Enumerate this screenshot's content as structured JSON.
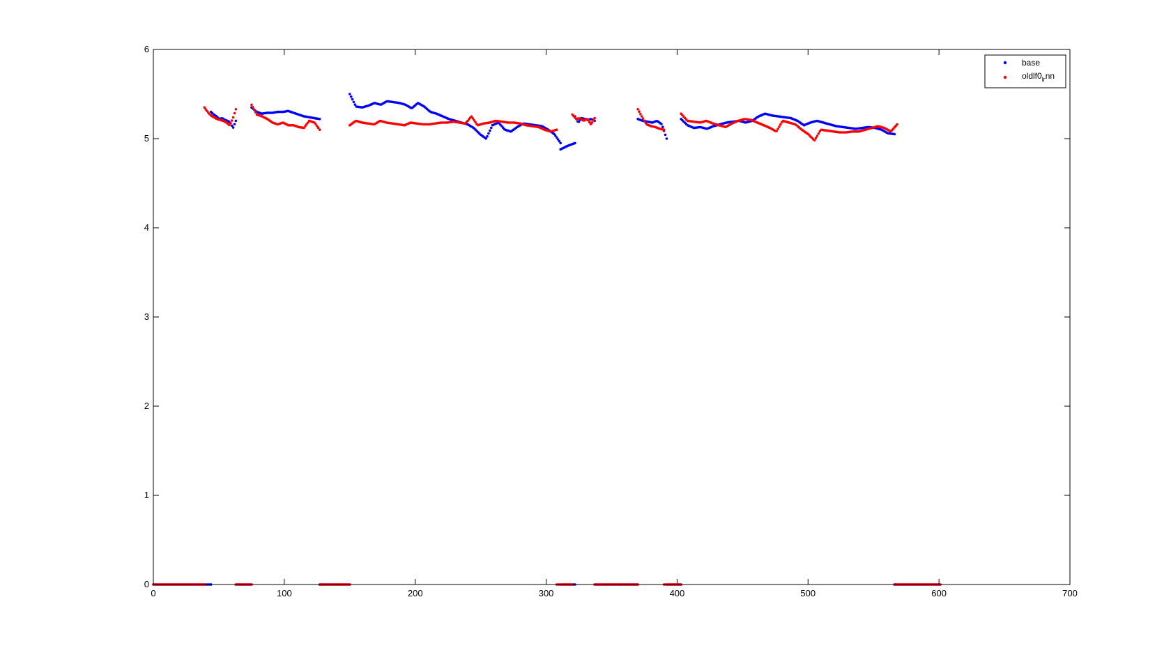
{
  "chart_data": {
    "type": "scatter",
    "title": "",
    "xlabel": "",
    "ylabel": "",
    "xlim": [
      0,
      700
    ],
    "ylim": [
      0,
      6
    ],
    "x_ticks": [
      0,
      100,
      200,
      300,
      400,
      500,
      600,
      700
    ],
    "y_ticks": [
      0,
      1,
      2,
      3,
      4,
      5,
      6
    ],
    "grid": false,
    "legend_position": "top-right",
    "series": [
      {
        "name": "base",
        "color": "#0000ff",
        "segments": [
          {
            "x_start": 44,
            "x_end": 63,
            "y": [
              5.3,
              5.27,
              5.25,
              5.22,
              5.23,
              5.21,
              5.2,
              5.18,
              5.12,
              5.2
            ]
          },
          {
            "x_start": 75,
            "x_end": 127,
            "y": [
              5.35,
              5.3,
              5.28,
              5.29,
              5.29,
              5.3,
              5.3,
              5.31,
              5.29,
              5.27,
              5.25,
              5.24,
              5.23,
              5.22
            ]
          },
          {
            "x_start": 150,
            "x_end": 311,
            "y": [
              5.5,
              5.36,
              5.35,
              5.37,
              5.4,
              5.38,
              5.42,
              5.41,
              5.4,
              5.38,
              5.34,
              5.4,
              5.36,
              5.3,
              5.28,
              5.25,
              5.22,
              5.2,
              5.18,
              5.16,
              5.12,
              5.05,
              5.0,
              5.15,
              5.18,
              5.1,
              5.08,
              5.13,
              5.17,
              5.16,
              5.15,
              5.14,
              5.1,
              5.05,
              4.95
            ]
          },
          {
            "x_start": 311,
            "x_end": 322,
            "y": [
              4.88,
              4.92,
              4.95
            ]
          },
          {
            "x_start": 322,
            "x_end": 337,
            "y": [
              5.25,
              5.18,
              5.23,
              5.22,
              5.21,
              5.22,
              5.2
            ]
          },
          {
            "x_start": 370,
            "x_end": 392,
            "y": [
              5.22,
              5.2,
              5.19,
              5.18,
              5.2,
              5.16,
              5.0
            ]
          },
          {
            "x_start": 403,
            "x_end": 566,
            "y": [
              5.22,
              5.15,
              5.12,
              5.13,
              5.11,
              5.14,
              5.16,
              5.18,
              5.19,
              5.2,
              5.18,
              5.2,
              5.25,
              5.28,
              5.26,
              5.25,
              5.24,
              5.23,
              5.2,
              5.15,
              5.18,
              5.2,
              5.18,
              5.16,
              5.14,
              5.13,
              5.12,
              5.11,
              5.12,
              5.13,
              5.12,
              5.1,
              5.06,
              5.05
            ]
          }
        ],
        "zero_ranges": [
          [
            0,
            44
          ],
          [
            63,
            75
          ],
          [
            127,
            150
          ],
          [
            311,
            322
          ],
          [
            337,
            370
          ],
          [
            392,
            403
          ],
          [
            566,
            601
          ]
        ]
      },
      {
        "name": "oldlf0_lr_nn",
        "color": "#ff0000",
        "segments": [
          {
            "x_start": 39,
            "x_end": 63,
            "y": [
              5.35,
              5.3,
              5.26,
              5.24,
              5.22,
              5.21,
              5.2,
              5.18,
              5.15,
              5.22,
              5.33
            ]
          },
          {
            "x_start": 75,
            "x_end": 127,
            "y": [
              5.38,
              5.27,
              5.25,
              5.22,
              5.18,
              5.16,
              5.18,
              5.15,
              5.15,
              5.13,
              5.12,
              5.2,
              5.18,
              5.1
            ]
          },
          {
            "x_start": 150,
            "x_end": 308,
            "y": [
              5.15,
              5.2,
              5.18,
              5.17,
              5.16,
              5.2,
              5.18,
              5.17,
              5.16,
              5.15,
              5.18,
              5.17,
              5.16,
              5.16,
              5.17,
              5.18,
              5.18,
              5.19,
              5.18,
              5.17,
              5.25,
              5.15,
              5.17,
              5.18,
              5.2,
              5.19,
              5.18,
              5.18,
              5.17,
              5.15,
              5.14,
              5.13,
              5.1,
              5.08,
              5.1
            ]
          },
          {
            "x_start": 320,
            "x_end": 337,
            "y": [
              5.27,
              5.22,
              5.23,
              5.2,
              5.22,
              5.16,
              5.23
            ]
          },
          {
            "x_start": 370,
            "x_end": 390,
            "y": [
              5.33,
              5.24,
              5.16,
              5.14,
              5.13,
              5.11,
              5.1
            ]
          },
          {
            "x_start": 403,
            "x_end": 568,
            "y": [
              5.28,
              5.2,
              5.19,
              5.18,
              5.2,
              5.17,
              5.15,
              5.13,
              5.17,
              5.2,
              5.22,
              5.21,
              5.18,
              5.15,
              5.12,
              5.08,
              5.2,
              5.18,
              5.16,
              5.1,
              5.05,
              4.98,
              5.1,
              5.09,
              5.08,
              5.07,
              5.07,
              5.08,
              5.08,
              5.1,
              5.12,
              5.14,
              5.12,
              5.08,
              5.16
            ]
          }
        ],
        "zero_ranges": [
          [
            0,
            39
          ],
          [
            63,
            75
          ],
          [
            127,
            150
          ],
          [
            308,
            320
          ],
          [
            337,
            370
          ],
          [
            390,
            403
          ],
          [
            566,
            601
          ]
        ]
      }
    ]
  },
  "legend": {
    "base_label": "base",
    "second_label_main": "oldlf0",
    "second_label_sub1": "lr",
    "second_label_sub2": "nn"
  }
}
